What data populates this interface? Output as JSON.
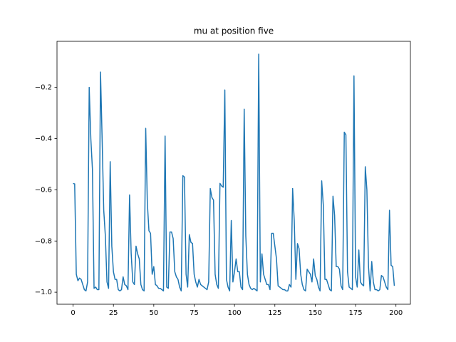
{
  "chart_data": {
    "type": "line",
    "title": "mu at position five",
    "color": "#1f77b4",
    "x": [
      0,
      1,
      2,
      3,
      4,
      5,
      6,
      7,
      8,
      9,
      10,
      11,
      12,
      13,
      14,
      15,
      16,
      17,
      18,
      19,
      20,
      21,
      22,
      23,
      24,
      25,
      26,
      27,
      28,
      29,
      30,
      31,
      32,
      33,
      34,
      35,
      36,
      37,
      38,
      39,
      40,
      41,
      42,
      43,
      44,
      45,
      46,
      47,
      48,
      49,
      50,
      51,
      52,
      53,
      54,
      55,
      56,
      57,
      58,
      59,
      60,
      61,
      62,
      63,
      64,
      65,
      66,
      67,
      68,
      69,
      70,
      71,
      72,
      73,
      74,
      75,
      76,
      77,
      78,
      79,
      80,
      81,
      82,
      83,
      84,
      85,
      86,
      87,
      88,
      89,
      90,
      91,
      92,
      93,
      94,
      95,
      96,
      97,
      98,
      99,
      100,
      101,
      102,
      103,
      104,
      105,
      106,
      107,
      108,
      109,
      110,
      111,
      112,
      113,
      114,
      115,
      116,
      117,
      118,
      119,
      120,
      121,
      122,
      123,
      124,
      125,
      126,
      127,
      128,
      129,
      130,
      131,
      132,
      133,
      134,
      135,
      136,
      137,
      138,
      139,
      140,
      141,
      142,
      143,
      144,
      145,
      146,
      147,
      148,
      149,
      150,
      151,
      152,
      153,
      154,
      155,
      156,
      157,
      158,
      159,
      160,
      161,
      162,
      163,
      164,
      165,
      166,
      167,
      168,
      169,
      170,
      171,
      172,
      173,
      174,
      175,
      176,
      177,
      178,
      179,
      180,
      181,
      182,
      183,
      184,
      185,
      186,
      187,
      188,
      189,
      190,
      191,
      192,
      193,
      194,
      195,
      196,
      197,
      198,
      199
    ],
    "values": [
      -0.575,
      -0.577,
      -0.93,
      -0.955,
      -0.945,
      -0.95,
      -0.97,
      -0.99,
      -0.995,
      -0.96,
      -0.2,
      -0.4,
      -0.52,
      -0.985,
      -0.98,
      -0.99,
      -0.99,
      -0.14,
      -0.4,
      -0.68,
      -0.78,
      -0.96,
      -0.985,
      -0.49,
      -0.82,
      -0.92,
      -0.95,
      -0.95,
      -0.99,
      -0.995,
      -0.99,
      -0.94,
      -0.97,
      -0.975,
      -0.99,
      -0.62,
      -0.85,
      -0.96,
      -0.97,
      -0.82,
      -0.85,
      -0.87,
      -0.97,
      -0.99,
      -0.995,
      -0.36,
      -0.65,
      -0.76,
      -0.77,
      -0.93,
      -0.9,
      -0.97,
      -0.975,
      -0.985,
      -0.985,
      -0.99,
      -0.995,
      -0.39,
      -0.98,
      -0.985,
      -0.765,
      -0.765,
      -0.79,
      -0.92,
      -0.94,
      -0.95,
      -0.98,
      -0.995,
      -0.545,
      -0.55,
      -0.93,
      -0.98,
      -0.775,
      -0.805,
      -0.81,
      -0.93,
      -0.96,
      -0.98,
      -0.95,
      -0.97,
      -0.975,
      -0.98,
      -0.985,
      -0.99,
      -0.96,
      -0.595,
      -0.63,
      -0.64,
      -0.93,
      -0.97,
      -0.985,
      -0.575,
      -0.585,
      -0.59,
      -0.21,
      -0.95,
      -0.98,
      -0.995,
      -0.72,
      -0.96,
      -0.92,
      -0.87,
      -0.92,
      -0.92,
      -0.98,
      -0.99,
      -0.285,
      -0.78,
      -0.93,
      -0.97,
      -0.985,
      -0.99,
      -0.985,
      -0.99,
      -0.995,
      -0.07,
      -0.96,
      -0.85,
      -0.93,
      -0.95,
      -0.97,
      -0.97,
      -0.99,
      -0.77,
      -0.77,
      -0.82,
      -0.87,
      -0.975,
      -0.98,
      -0.985,
      -0.99,
      -0.99,
      -0.995,
      -0.995,
      -0.97,
      -0.98,
      -0.595,
      -0.72,
      -0.95,
      -0.81,
      -0.83,
      -0.93,
      -0.97,
      -0.99,
      -0.995,
      -0.91,
      -0.92,
      -0.93,
      -0.96,
      -0.87,
      -0.935,
      -0.95,
      -0.98,
      -0.995,
      -0.565,
      -0.66,
      -0.95,
      -0.95,
      -0.97,
      -0.99,
      -0.995,
      -0.625,
      -0.7,
      -0.9,
      -0.9,
      -0.91,
      -0.975,
      -0.99,
      -0.375,
      -0.385,
      -0.92,
      -0.98,
      -0.985,
      -0.99,
      -0.155,
      -0.94,
      -0.98,
      -0.835,
      -0.96,
      -0.97,
      -0.975,
      -0.51,
      -0.6,
      -0.9,
      -0.995,
      -0.88,
      -0.96,
      -0.99,
      -0.99,
      -0.995,
      -0.99,
      -0.935,
      -0.94,
      -0.96,
      -0.98,
      -0.99,
      -0.68,
      -0.895,
      -0.9,
      -0.975
    ],
    "xlim": [
      -9.95,
      208.95
    ],
    "xticks": [
      0,
      25,
      50,
      75,
      100,
      125,
      150,
      175,
      200
    ],
    "ylim": [
      -1.047,
      -0.02
    ],
    "yticks": [
      {
        "value": -1.0,
        "label": "−1.0"
      },
      {
        "value": -0.8,
        "label": "−0.8"
      },
      {
        "value": -0.6,
        "label": "−0.6"
      },
      {
        "value": -0.4,
        "label": "−0.4"
      },
      {
        "value": -0.2,
        "label": "−0.2"
      }
    ]
  }
}
